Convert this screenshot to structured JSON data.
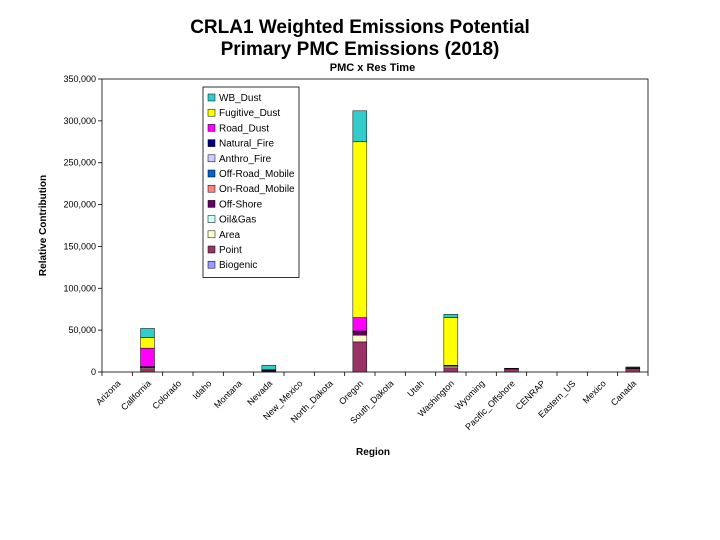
{
  "chart_data": {
    "type": "bar",
    "stacked": true,
    "title": "CRLA1 Weighted Emissions Potential",
    "title_line2": "Primary PMC Emissions (2018)",
    "subtitle": "PMC x Res Time",
    "xlabel": "Region",
    "ylabel": "Relative Contribution",
    "ylim": [
      0,
      350000
    ],
    "yticks": [
      0,
      50000,
      100000,
      150000,
      200000,
      250000,
      300000,
      350000
    ],
    "ytick_labels": [
      "0",
      "50,000",
      "100,000",
      "150,000",
      "200,000",
      "250,000",
      "300,000",
      "350,000"
    ],
    "grid": false,
    "legend_position": "top-left",
    "categories": [
      "Arizona",
      "California",
      "Colorado",
      "Idaho",
      "Montana",
      "Nevada",
      "New_Mexico",
      "North_Dakota",
      "Oregon",
      "South_Dakota",
      "Utah",
      "Washington",
      "Wyoming",
      "Pacific_Offshore",
      "CENRAP",
      "Eastern_US",
      "Mexico",
      "Canada"
    ],
    "series": [
      {
        "name": "Biogenic",
        "color": "#9999ff",
        "values": [
          0,
          0,
          0,
          0,
          0,
          0,
          0,
          0,
          0,
          0,
          0,
          0,
          0,
          0,
          0,
          0,
          0,
          0
        ]
      },
      {
        "name": "Point",
        "color": "#993366",
        "values": [
          0,
          4000,
          0,
          0,
          0,
          1000,
          0,
          0,
          36000,
          0,
          0,
          5000,
          0,
          3000,
          0,
          0,
          0,
          4000
        ]
      },
      {
        "name": "Area",
        "color": "#ffffcc",
        "values": [
          0,
          1500,
          0,
          0,
          0,
          500,
          0,
          0,
          8000,
          0,
          0,
          2000,
          0,
          1000,
          0,
          0,
          0,
          500
        ]
      },
      {
        "name": "Oil&Gas",
        "color": "#ccffff",
        "values": [
          0,
          0,
          0,
          0,
          0,
          0,
          0,
          0,
          0,
          0,
          0,
          0,
          0,
          0,
          0,
          0,
          0,
          0
        ]
      },
      {
        "name": "Off-Shore",
        "color": "#660066",
        "values": [
          0,
          500,
          0,
          0,
          0,
          0,
          0,
          0,
          4000,
          0,
          0,
          500,
          0,
          500,
          0,
          0,
          0,
          1500
        ]
      },
      {
        "name": "On-Road_Mobile",
        "color": "#ff8080",
        "values": [
          0,
          200,
          0,
          0,
          0,
          100,
          0,
          0,
          500,
          0,
          0,
          200,
          0,
          0,
          0,
          0,
          0,
          0
        ]
      },
      {
        "name": "Off-Road_Mobile",
        "color": "#0066cc",
        "values": [
          0,
          100,
          0,
          0,
          0,
          0,
          0,
          0,
          300,
          0,
          0,
          100,
          0,
          0,
          0,
          0,
          0,
          0
        ]
      },
      {
        "name": "Anthro_Fire",
        "color": "#ccccff",
        "values": [
          0,
          0,
          0,
          0,
          0,
          0,
          0,
          0,
          0,
          0,
          0,
          0,
          0,
          0,
          0,
          0,
          0,
          0
        ]
      },
      {
        "name": "Natural_Fire",
        "color": "#000080",
        "values": [
          0,
          200,
          0,
          0,
          0,
          0,
          0,
          0,
          200,
          0,
          0,
          200,
          0,
          0,
          0,
          0,
          0,
          0
        ]
      },
      {
        "name": "Road_Dust",
        "color": "#ff00ff",
        "values": [
          0,
          22000,
          0,
          0,
          0,
          500,
          0,
          0,
          16000,
          0,
          0,
          0,
          0,
          0,
          0,
          0,
          0,
          0
        ]
      },
      {
        "name": "Fugitive_Dust",
        "color": "#ffff00",
        "values": [
          0,
          12500,
          0,
          0,
          0,
          1000,
          0,
          0,
          210000,
          0,
          0,
          57000,
          0,
          0,
          0,
          0,
          0,
          0
        ]
      },
      {
        "name": "WB_Dust",
        "color": "#33cccc",
        "values": [
          0,
          11000,
          0,
          0,
          0,
          5000,
          0,
          0,
          37000,
          0,
          0,
          4000,
          0,
          0,
          0,
          0,
          0,
          0
        ]
      }
    ]
  }
}
